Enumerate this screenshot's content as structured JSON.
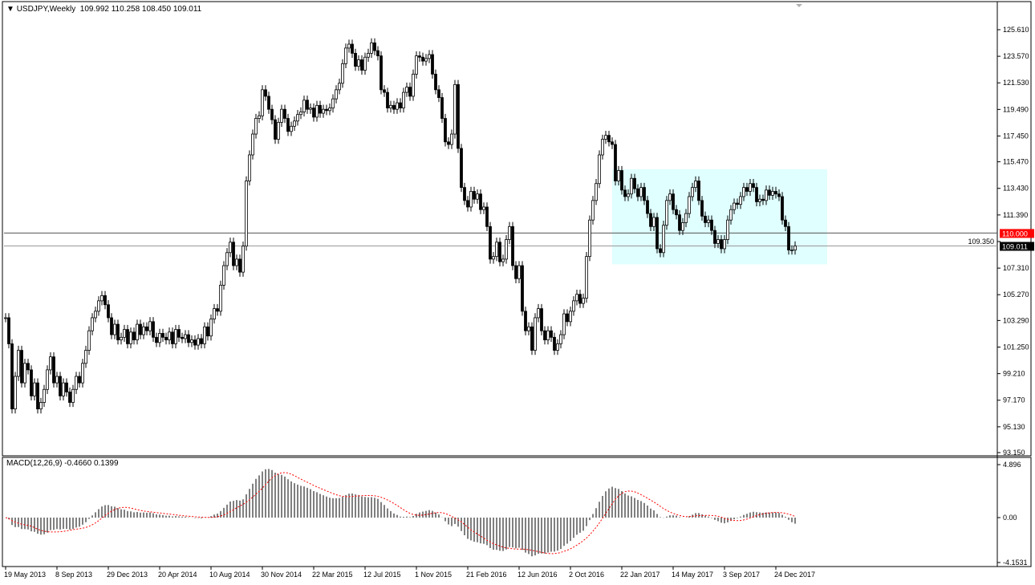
{
  "header": {
    "symbol_timeframe": "USDJPY,Weekly",
    "ohlc": "109.992 110.258 108.450 109.011"
  },
  "indicator": {
    "label": "MACD(12,26,9) -0.4660 0.1399",
    "axis_labels": [
      "4.896",
      "0.00",
      "-4.1531"
    ],
    "axis_values": [
      4.896,
      0,
      -4.1531
    ]
  },
  "chart_data": {
    "type": "candlestick",
    "title": "USDJPY,Weekly",
    "first_week": "2013-05-19",
    "price_ylim": [
      93.15,
      125.61
    ],
    "y_tick_labels": [
      "125.610",
      "123.570",
      "121.530",
      "119.490",
      "117.450",
      "115.470",
      "113.430",
      "111.390",
      "109.350",
      "107.310",
      "105.270",
      "103.290",
      "101.250",
      "99.210",
      "97.170",
      "95.130",
      "93.150"
    ],
    "x_tick_labels": [
      {
        "label": "19 May 2013",
        "week": 0
      },
      {
        "label": "8 Sep 2013",
        "week": 16
      },
      {
        "label": "29 Dec 2013",
        "week": 32
      },
      {
        "label": "20 Apr 2014",
        "week": 48
      },
      {
        "label": "10 Aug 2014",
        "week": 64
      },
      {
        "label": "30 Nov 2014",
        "week": 80
      },
      {
        "label": "22 Mar 2015",
        "week": 96
      },
      {
        "label": "12 Jul 2015",
        "week": 112
      },
      {
        "label": "1 Nov 2015",
        "week": 128
      },
      {
        "label": "21 Feb 2016",
        "week": 144
      },
      {
        "label": "12 Jun 2016",
        "week": 160
      },
      {
        "label": "2 Oct 2016",
        "week": 176
      },
      {
        "label": "22 Jan 2017",
        "week": 192
      },
      {
        "label": "14 May 2017",
        "week": 208
      },
      {
        "label": "3 Sep 2017",
        "week": 224
      },
      {
        "label": "24 Dec 2017",
        "week": 240
      }
    ],
    "closes": [
      103.5,
      101.5,
      96.5,
      99,
      101,
      98.5,
      100,
      99.5,
      97.5,
      98.5,
      96.5,
      97,
      98,
      99.5,
      100.5,
      98.5,
      99,
      97.5,
      98.5,
      97.8,
      97,
      98,
      99,
      98.5,
      100,
      101,
      102.5,
      103.5,
      104,
      104.8,
      105.2,
      104.5,
      103.5,
      102.2,
      103,
      101.8,
      102,
      102.6,
      101.5,
      102.4,
      101.8,
      103,
      102.2,
      102.8,
      102.5,
      103.2,
      102,
      101.6,
      102.3,
      102,
      101.8,
      102.4,
      101.5,
      102.6,
      102,
      101.9,
      102.2,
      101.6,
      101.8,
      101.4,
      101.9,
      101.5,
      102.8,
      102.1,
      103.4,
      104.2,
      104,
      106,
      107.5,
      108.5,
      109.3,
      107.5,
      108,
      107,
      109,
      114,
      116,
      117.6,
      118.8,
      119,
      121,
      120.5,
      119.5,
      118.7,
      117.2,
      118.5,
      119.5,
      118.8,
      117.8,
      118.2,
      118.6,
      119.1,
      119.3,
      120.2,
      119.5,
      119.6,
      118.9,
      119.8,
      119.2,
      119.5,
      119.4,
      119.6,
      120.3,
      121,
      121.5,
      123,
      124.2,
      124.5,
      123.8,
      122.8,
      123.3,
      122.5,
      123.5,
      123.8,
      124.6,
      124,
      123.6,
      121,
      120.8,
      119.6,
      119.8,
      119.5,
      120,
      119.6,
      120.8,
      121.2,
      120.5,
      122.2,
      123.6,
      123.5,
      123.2,
      123.4,
      123.7,
      122.2,
      121,
      120.4,
      118.8,
      117,
      116.8,
      117.6,
      121.4,
      116.5,
      113.5,
      112.5,
      112,
      113.2,
      112.6,
      113,
      111.8,
      112,
      110.5,
      108,
      108.2,
      109.3,
      107.8,
      108,
      109.5,
      110.5,
      107.5,
      106.5,
      107.5,
      104,
      102.5,
      102.8,
      101,
      103.5,
      104.2,
      102.5,
      101.8,
      102.5,
      102,
      101,
      101.5,
      102.2,
      103.8,
      103.2,
      104,
      104.8,
      105.3,
      104.6,
      105,
      108.2,
      111,
      112.5,
      113.8,
      116,
      117.2,
      117.5,
      117,
      116.8,
      114,
      114.8,
      113.3,
      112.8,
      113,
      114.2,
      113.4,
      112.8,
      113.5,
      112.5,
      111.5,
      110.5,
      111.2,
      108.8,
      108.5,
      110.6,
      112.5,
      113,
      111.8,
      111.4,
      110.2,
      110.8,
      111.5,
      112.8,
      113.5,
      114,
      112.5,
      111.3,
      110.8,
      111,
      110.2,
      109.2,
      109.5,
      108.8,
      109.5,
      111,
      111.8,
      112.3,
      112.2,
      112.8,
      113.5,
      113.2,
      113.8,
      113.5,
      112.4,
      112.6,
      112.5,
      113.3,
      112.9,
      113.2,
      113,
      112.8,
      111,
      110.5,
      108.7,
      108.7,
      109.011
    ],
    "horizontal_lines": [
      {
        "price": 110.0,
        "label": "110.000",
        "color": "#ff0000",
        "text_color": "#ffffff"
      },
      {
        "price": 109.011,
        "label": "109.011",
        "color": "#000000",
        "text_color": "#ffffff"
      }
    ],
    "range_box": {
      "price_high": 114.9,
      "price_low": 107.6,
      "from": "2017-01-01",
      "to": "2018-04-15",
      "color": "#e0ffff"
    },
    "colors": {
      "bull": "#ffffff",
      "bear": "#000000",
      "outline": "#000000",
      "macd_signal": "#ff0000"
    }
  }
}
